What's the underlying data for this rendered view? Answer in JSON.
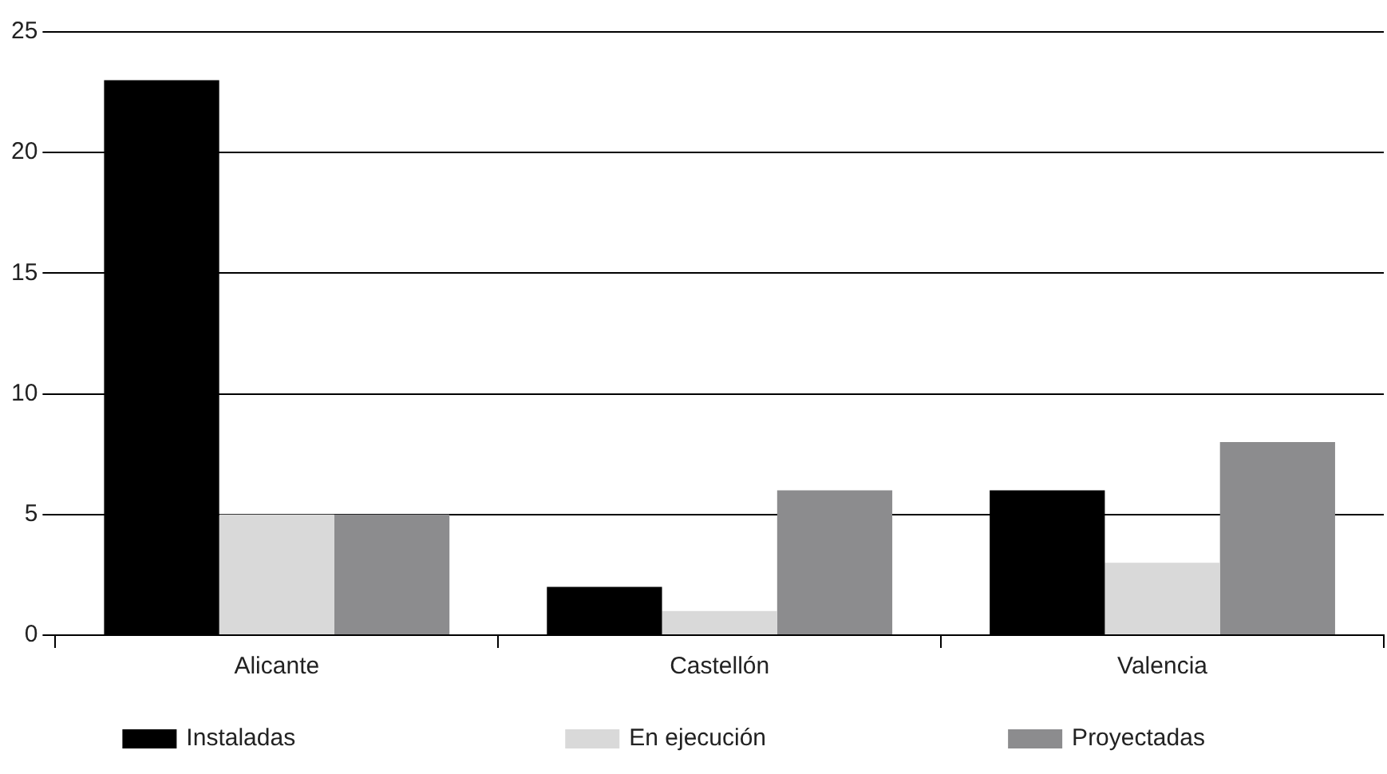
{
  "chart_data": {
    "type": "bar",
    "categories": [
      "Alicante",
      "Castellón",
      "Valencia"
    ],
    "series": [
      {
        "name": "Instaladas",
        "color": "#000000",
        "values": [
          23,
          2,
          6
        ]
      },
      {
        "name": "En ejecución",
        "color": "#d9d9d9",
        "values": [
          5,
          1,
          3
        ]
      },
      {
        "name": "Proyectadas",
        "color": "#8c8c8e",
        "values": [
          5,
          6,
          8
        ]
      }
    ],
    "ylim": [
      0,
      25
    ],
    "yticks": [
      0,
      5,
      10,
      15,
      20,
      25
    ],
    "grid": "y",
    "legend": "bottom"
  }
}
